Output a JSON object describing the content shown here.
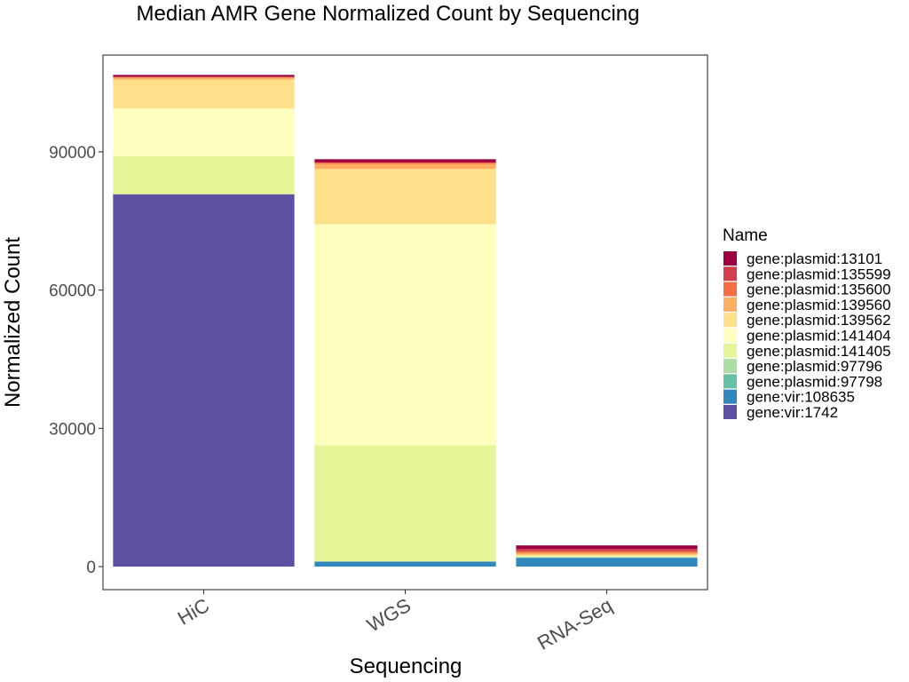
{
  "chart_data": {
    "type": "bar",
    "stacked": true,
    "title": "Median AMR Gene Normalized Count by Sequencing",
    "xlabel": "Sequencing",
    "ylabel": "Normalized Count",
    "categories": [
      "HiC",
      "WGS",
      "RNA-Seq"
    ],
    "ylim": [
      -5000,
      111000
    ],
    "yticks": [
      0,
      30000,
      60000,
      90000
    ],
    "yticklabels": [
      "0",
      "30000",
      "60000",
      "90000"
    ],
    "grid": false,
    "legend": {
      "title": "Name",
      "position": "right"
    },
    "series": [
      {
        "name": "gene:plasmid:13101",
        "color": "#9E0142",
        "values": [
          400,
          700,
          800
        ]
      },
      {
        "name": "gene:plasmid:135599",
        "color": "#D53E4F",
        "values": [
          100,
          0,
          500
        ]
      },
      {
        "name": "gene:plasmid:135600",
        "color": "#F46D43",
        "values": [
          100,
          300,
          300
        ]
      },
      {
        "name": "gene:plasmid:139560",
        "color": "#FDAE61",
        "values": [
          400,
          1100,
          400
        ]
      },
      {
        "name": "gene:plasmid:139562",
        "color": "#FEE08B",
        "values": [
          6300,
          12000,
          300
        ]
      },
      {
        "name": "gene:plasmid:141404",
        "color": "#FFFFBF",
        "values": [
          10300,
          48000,
          100
        ]
      },
      {
        "name": "gene:plasmid:141405",
        "color": "#E6F598",
        "values": [
          8300,
          25200,
          100
        ]
      },
      {
        "name": "gene:plasmid:97796",
        "color": "#ABDDA4",
        "values": [
          0,
          0,
          100
        ]
      },
      {
        "name": "gene:plasmid:97798",
        "color": "#66C2A5",
        "values": [
          0,
          0,
          100
        ]
      },
      {
        "name": "gene:vir:108635",
        "color": "#3288BD",
        "values": [
          0,
          1100,
          1900
        ]
      },
      {
        "name": "gene:vir:1742",
        "color": "#5E4FA2",
        "values": [
          80800,
          0,
          0
        ]
      }
    ]
  }
}
